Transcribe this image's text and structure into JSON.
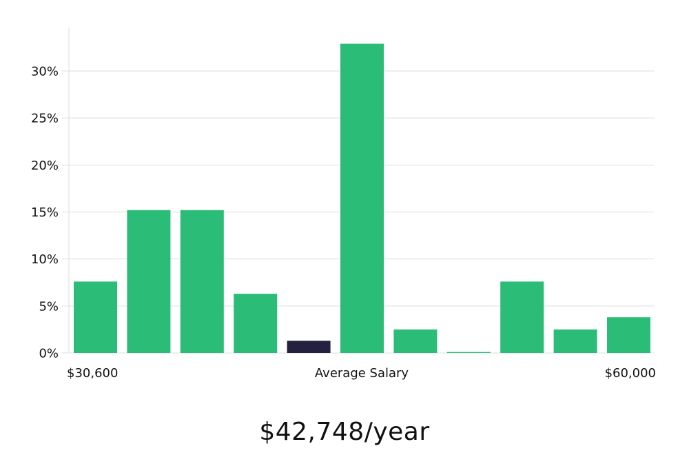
{
  "chart_data": {
    "type": "bar",
    "categories": [
      "",
      "",
      "",
      "",
      "",
      "",
      "",
      "",
      "",
      "",
      ""
    ],
    "values": [
      7.6,
      15.2,
      15.2,
      6.3,
      1.3,
      32.9,
      2.5,
      0.1,
      7.6,
      2.5,
      3.8
    ],
    "highlight_index": 4,
    "ylim": [
      0,
      34
    ],
    "yticks": [
      0,
      5,
      10,
      15,
      20,
      25,
      30
    ],
    "ytick_format": "%",
    "x_labels": {
      "left": "$30,600",
      "center": "Average Salary",
      "right": "$60,000"
    },
    "grid": true,
    "colors": {
      "bar": "#2bbd77",
      "highlight": "#23213f"
    }
  },
  "summary": {
    "salary": "$42,748/year"
  }
}
